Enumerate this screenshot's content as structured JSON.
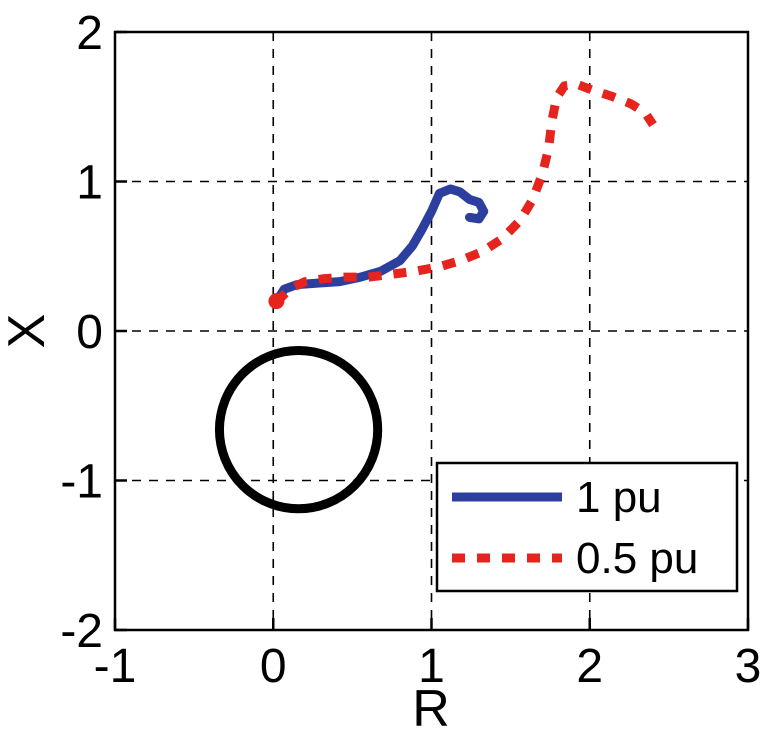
{
  "chart_data": {
    "type": "line",
    "title": "",
    "xlabel": "R",
    "ylabel": "X",
    "xlim": [
      -1,
      3
    ],
    "ylim": [
      -2,
      2
    ],
    "xticks": [
      -1,
      0,
      1,
      2,
      3
    ],
    "yticks": [
      -2,
      -1,
      0,
      1,
      2
    ],
    "grid": true,
    "grid_style": "dashed",
    "background": "#ffffff",
    "axis_color": "#000000",
    "legend_position": "lower-right",
    "series": [
      {
        "name": "1 pu",
        "color": "#2c3f9e",
        "line_style": "solid",
        "line_width": 9,
        "points": [
          [
            0.02,
            0.2
          ],
          [
            0.07,
            0.28
          ],
          [
            0.15,
            0.31
          ],
          [
            0.28,
            0.32
          ],
          [
            0.42,
            0.33
          ],
          [
            0.55,
            0.36
          ],
          [
            0.68,
            0.4
          ],
          [
            0.8,
            0.47
          ],
          [
            0.88,
            0.57
          ],
          [
            0.94,
            0.68
          ],
          [
            1.0,
            0.8
          ],
          [
            1.05,
            0.92
          ],
          [
            1.12,
            0.95
          ],
          [
            1.18,
            0.93
          ],
          [
            1.24,
            0.88
          ],
          [
            1.3,
            0.86
          ],
          [
            1.33,
            0.8
          ],
          [
            1.3,
            0.75
          ],
          [
            1.24,
            0.76
          ]
        ]
      },
      {
        "name": "0.5 pu",
        "color": "#e6231d",
        "line_style": "dotted",
        "line_width": 9,
        "points": [
          [
            0.02,
            0.19
          ],
          [
            0.1,
            0.28
          ],
          [
            0.2,
            0.33
          ],
          [
            0.32,
            0.35
          ],
          [
            0.45,
            0.36
          ],
          [
            0.6,
            0.36
          ],
          [
            0.75,
            0.38
          ],
          [
            0.9,
            0.4
          ],
          [
            1.05,
            0.43
          ],
          [
            1.18,
            0.47
          ],
          [
            1.32,
            0.53
          ],
          [
            1.45,
            0.62
          ],
          [
            1.56,
            0.74
          ],
          [
            1.64,
            0.88
          ],
          [
            1.7,
            1.05
          ],
          [
            1.74,
            1.22
          ],
          [
            1.76,
            1.4
          ],
          [
            1.79,
            1.56
          ],
          [
            1.84,
            1.64
          ],
          [
            1.92,
            1.65
          ],
          [
            2.02,
            1.61
          ],
          [
            2.14,
            1.57
          ],
          [
            2.26,
            1.52
          ],
          [
            2.35,
            1.46
          ],
          [
            2.4,
            1.38
          ]
        ]
      }
    ],
    "shapes": [
      {
        "type": "circle",
        "name": "relay-characteristic-circle",
        "center": [
          0.16,
          -0.66
        ],
        "radius": 0.5,
        "color": "#000000",
        "line_width": 9
      }
    ],
    "start_marker": {
      "point": [
        0.02,
        0.2
      ],
      "color": "#e6231d",
      "radius_px": 8
    }
  },
  "legend": {
    "items": [
      {
        "label": "1 pu"
      },
      {
        "label": "0.5 pu"
      }
    ]
  }
}
